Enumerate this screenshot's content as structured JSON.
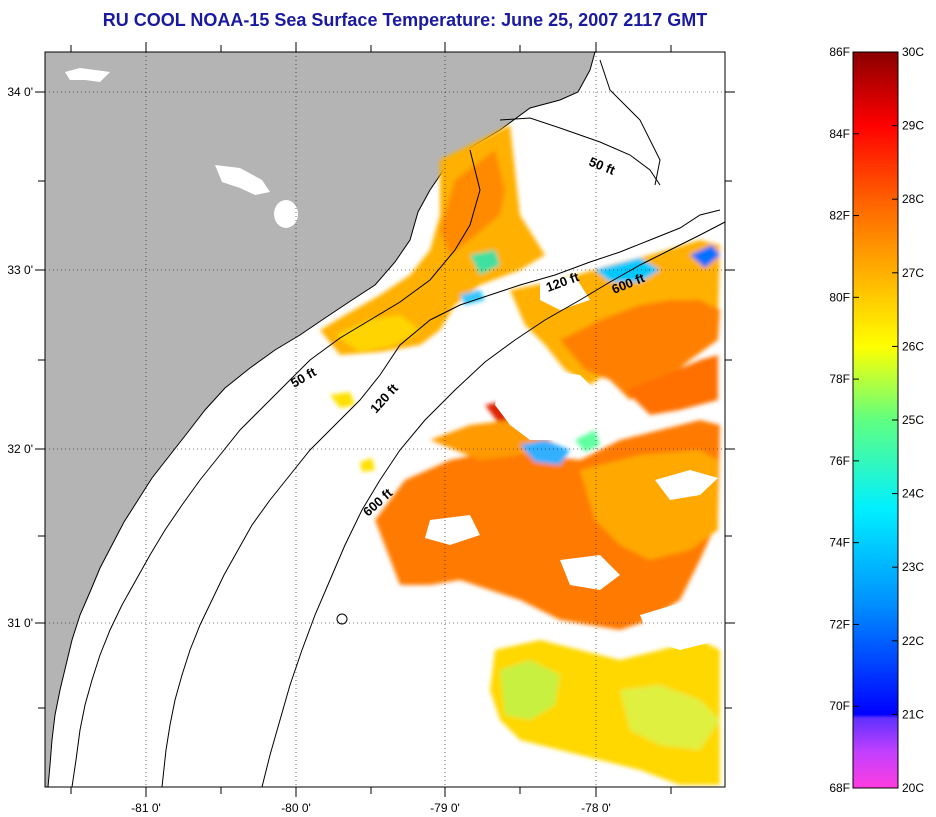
{
  "title": "RU COOL  NOAA-15  Sea Surface Temperature:  June 25, 2007 2117 GMT",
  "map": {
    "lon_ticks": [
      {
        "lon": -81,
        "label": "-81 0'"
      },
      {
        "lon": -80,
        "label": "-80 0'"
      },
      {
        "lon": -79,
        "label": "-79 0'"
      },
      {
        "lon": -78,
        "label": "-78 0'"
      }
    ],
    "lat_ticks": [
      {
        "lat": 34,
        "label": "34 0'"
      },
      {
        "lat": 33,
        "label": "33 0'"
      },
      {
        "lat": 32,
        "label": "32 0'"
      },
      {
        "lat": 31,
        "label": "31 0'"
      }
    ],
    "contour_labels": [
      "50 ft",
      "50 ft",
      "120 ft",
      "120 ft",
      "600 ft",
      "600 ft"
    ],
    "colors": {
      "land": "#b4b4b4",
      "ocean": "#ffffff",
      "frame": "#000000"
    }
  },
  "colorbar": {
    "fahrenheit": [
      "86F",
      "84F",
      "82F",
      "80F",
      "78F",
      "76F",
      "74F",
      "72F",
      "70F",
      "68F"
    ],
    "celsius": [
      "30C",
      "29C",
      "28C",
      "27C",
      "26C",
      "25C",
      "24C",
      "23C",
      "22C",
      "21C",
      "20C"
    ]
  }
}
